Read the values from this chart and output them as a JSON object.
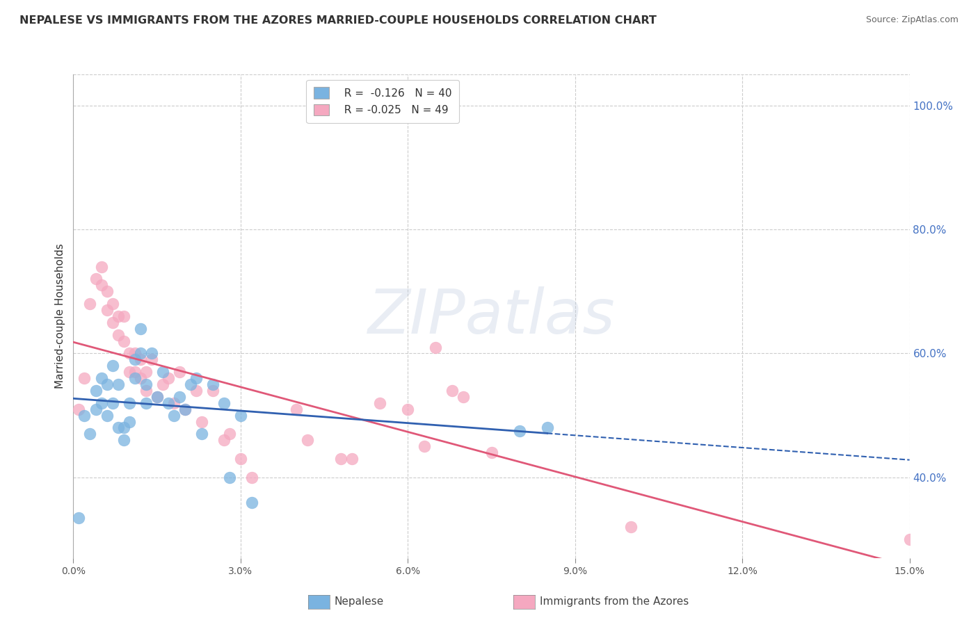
{
  "title": "NEPALESE VS IMMIGRANTS FROM THE AZORES MARRIED-COUPLE HOUSEHOLDS CORRELATION CHART",
  "source_text": "Source: ZipAtlas.com",
  "ylabel_left": "Married-couple Households",
  "xlim": [
    0.0,
    0.15
  ],
  "ylim": [
    0.27,
    1.05
  ],
  "xtick_labels": [
    "0.0%",
    "",
    "3.0%",
    "",
    "6.0%",
    "",
    "9.0%",
    "",
    "12.0%",
    "",
    "15.0%"
  ],
  "xtick_values": [
    0.0,
    0.015,
    0.03,
    0.045,
    0.06,
    0.075,
    0.09,
    0.105,
    0.12,
    0.135,
    0.15
  ],
  "xtick_display_values": [
    0.0,
    0.03,
    0.06,
    0.09,
    0.12,
    0.15
  ],
  "xtick_display_labels": [
    "0.0%",
    "3.0%",
    "6.0%",
    "9.0%",
    "12.0%",
    "15.0%"
  ],
  "ytick_values_right": [
    0.4,
    0.6,
    0.8,
    1.0
  ],
  "ytick_labels_right": [
    "40.0%",
    "60.0%",
    "80.0%",
    "100.0%"
  ],
  "blue_color": "#7ab3e0",
  "pink_color": "#f5a8c0",
  "blue_line_color": "#3060b0",
  "pink_line_color": "#e05878",
  "legend_text_blue": "R =  -0.126   N = 40",
  "legend_text_pink": "R = -0.025   N = 49",
  "legend_label_blue": "Nepalese",
  "legend_label_pink": "Immigrants from the Azores",
  "watermark": "ZIPatlas",
  "blue_scatter_x": [
    0.001,
    0.002,
    0.003,
    0.004,
    0.004,
    0.005,
    0.005,
    0.006,
    0.006,
    0.007,
    0.007,
    0.008,
    0.008,
    0.009,
    0.009,
    0.01,
    0.01,
    0.011,
    0.011,
    0.012,
    0.012,
    0.013,
    0.013,
    0.014,
    0.015,
    0.016,
    0.017,
    0.018,
    0.019,
    0.02,
    0.021,
    0.022,
    0.023,
    0.025,
    0.027,
    0.028,
    0.03,
    0.032,
    0.08,
    0.085
  ],
  "blue_scatter_y": [
    0.335,
    0.5,
    0.47,
    0.51,
    0.54,
    0.52,
    0.56,
    0.5,
    0.55,
    0.52,
    0.58,
    0.48,
    0.55,
    0.48,
    0.46,
    0.52,
    0.49,
    0.56,
    0.59,
    0.6,
    0.64,
    0.55,
    0.52,
    0.6,
    0.53,
    0.57,
    0.52,
    0.5,
    0.53,
    0.51,
    0.55,
    0.56,
    0.47,
    0.55,
    0.52,
    0.4,
    0.5,
    0.36,
    0.475,
    0.48
  ],
  "pink_scatter_x": [
    0.001,
    0.002,
    0.003,
    0.004,
    0.005,
    0.005,
    0.006,
    0.006,
    0.007,
    0.007,
    0.008,
    0.008,
    0.009,
    0.009,
    0.01,
    0.01,
    0.011,
    0.011,
    0.012,
    0.012,
    0.013,
    0.013,
    0.014,
    0.015,
    0.016,
    0.017,
    0.018,
    0.019,
    0.02,
    0.022,
    0.023,
    0.025,
    0.027,
    0.028,
    0.03,
    0.032,
    0.04,
    0.042,
    0.048,
    0.05,
    0.055,
    0.06,
    0.063,
    0.065,
    0.068,
    0.07,
    0.075,
    0.1,
    0.15
  ],
  "pink_scatter_y": [
    0.51,
    0.56,
    0.68,
    0.72,
    0.74,
    0.71,
    0.67,
    0.7,
    0.65,
    0.68,
    0.63,
    0.66,
    0.62,
    0.66,
    0.57,
    0.6,
    0.57,
    0.6,
    0.56,
    0.59,
    0.54,
    0.57,
    0.59,
    0.53,
    0.55,
    0.56,
    0.52,
    0.57,
    0.51,
    0.54,
    0.49,
    0.54,
    0.46,
    0.47,
    0.43,
    0.4,
    0.51,
    0.46,
    0.43,
    0.43,
    0.52,
    0.51,
    0.45,
    0.61,
    0.54,
    0.53,
    0.44,
    0.32,
    0.3
  ],
  "background_color": "#ffffff",
  "grid_color": "#cccccc",
  "plot_bg_color": "#ffffff"
}
